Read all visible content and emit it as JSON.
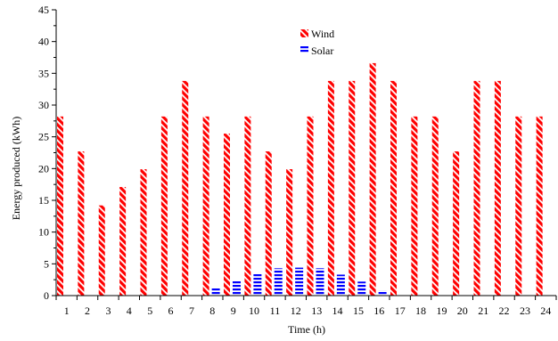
{
  "chart_data": {
    "type": "bar",
    "title": "",
    "xlabel": "Time (h)",
    "ylabel": "Energy produced (kWh)",
    "ylim": [
      0,
      45
    ],
    "yticks": [
      0,
      5,
      10,
      15,
      20,
      25,
      30,
      35,
      40,
      45
    ],
    "grid": false,
    "legend_position": "top-center",
    "categories": [
      "1",
      "2",
      "3",
      "4",
      "5",
      "6",
      "7",
      "8",
      "9",
      "10",
      "11",
      "12",
      "13",
      "14",
      "15",
      "16",
      "17",
      "18",
      "19",
      "20",
      "21",
      "22",
      "23",
      "24"
    ],
    "series": [
      {
        "name": "Wind",
        "color": "#ff0000",
        "pattern": "diagonal-hatch",
        "values": [
          28.2,
          22.7,
          14.2,
          17.1,
          19.9,
          28.2,
          33.8,
          28.2,
          25.5,
          28.2,
          22.7,
          19.9,
          28.2,
          33.8,
          33.8,
          36.6,
          33.8,
          28.2,
          28.2,
          22.7,
          33.8,
          33.8,
          28.2,
          28.2
        ]
      },
      {
        "name": "Solar",
        "color": "#0000ff",
        "pattern": "horizontal-hatch",
        "values": [
          0,
          0,
          0,
          0,
          0,
          0,
          0,
          1.2,
          2.3,
          3.5,
          4.3,
          4.4,
          4.3,
          3.3,
          2.2,
          0.8,
          0,
          0,
          0,
          0,
          0,
          0,
          0,
          0
        ]
      }
    ]
  }
}
